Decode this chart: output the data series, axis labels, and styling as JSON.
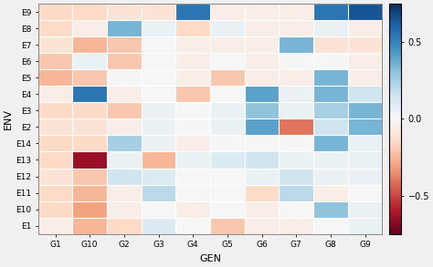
{
  "genotypes": [
    "G1",
    "G10",
    "G2",
    "G3",
    "G4",
    "G5",
    "G6",
    "G7",
    "G8",
    "G9"
  ],
  "environments": [
    "E9",
    "E8",
    "E7",
    "E6",
    "E5",
    "E4",
    "E3",
    "E2",
    "E14",
    "E13",
    "E12",
    "E11",
    "E10",
    "E1"
  ],
  "values": [
    [
      -0.15,
      -0.15,
      -0.1,
      -0.1,
      0.55,
      -0.05,
      -0.05,
      -0.05,
      0.55,
      0.65
    ],
    [
      -0.15,
      -0.05,
      0.35,
      0.05,
      -0.15,
      0.05,
      -0.05,
      -0.05,
      0.05,
      -0.05
    ],
    [
      -0.1,
      -0.25,
      -0.2,
      0.0,
      -0.05,
      -0.05,
      -0.05,
      0.35,
      -0.1,
      -0.1
    ],
    [
      -0.2,
      0.05,
      -0.2,
      0.0,
      -0.05,
      0.0,
      -0.05,
      0.0,
      0.0,
      -0.05
    ],
    [
      -0.25,
      -0.2,
      0.0,
      0.0,
      -0.05,
      -0.2,
      -0.05,
      -0.05,
      0.35,
      -0.05
    ],
    [
      -0.05,
      0.55,
      -0.05,
      0.0,
      -0.2,
      0.0,
      0.4,
      0.05,
      0.35,
      0.15
    ],
    [
      -0.15,
      -0.15,
      -0.2,
      0.05,
      0.0,
      0.05,
      0.3,
      0.05,
      0.25,
      0.35
    ],
    [
      -0.1,
      -0.1,
      -0.05,
      0.05,
      0.0,
      0.05,
      0.4,
      -0.4,
      0.15,
      0.35
    ],
    [
      -0.15,
      -0.15,
      0.25,
      0.05,
      -0.05,
      0.0,
      0.0,
      0.0,
      0.35,
      0.05
    ],
    [
      -0.15,
      -0.65,
      0.05,
      -0.25,
      0.05,
      0.1,
      0.15,
      0.05,
      0.05,
      0.05
    ],
    [
      -0.1,
      -0.2,
      0.15,
      0.1,
      0.0,
      0.0,
      0.05,
      0.15,
      0.05,
      0.05
    ],
    [
      -0.15,
      -0.25,
      -0.05,
      0.2,
      0.0,
      0.0,
      -0.15,
      0.2,
      -0.05,
      0.0
    ],
    [
      -0.15,
      -0.3,
      -0.05,
      0.0,
      -0.05,
      0.0,
      -0.05,
      0.0,
      0.3,
      0.05
    ],
    [
      -0.05,
      -0.25,
      -0.15,
      0.1,
      0.0,
      -0.2,
      -0.05,
      -0.05,
      0.0,
      0.05
    ]
  ],
  "cmap": "RdBu",
  "vmin": -0.75,
  "vmax": 0.75,
  "colorbar_ticks": [
    -0.5,
    0.0,
    0.5
  ],
  "xlabel": "GEN",
  "ylabel": "ENV",
  "background_color": "#f0f0f0",
  "figsize": [
    4.74,
    2.93
  ],
  "dpi": 100
}
